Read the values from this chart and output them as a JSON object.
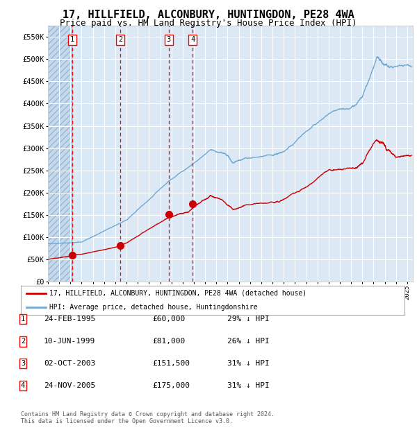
{
  "title": "17, HILLFIELD, ALCONBURY, HUNTINGDON, PE28 4WA",
  "subtitle": "Price paid vs. HM Land Registry's House Price Index (HPI)",
  "title_fontsize": 11,
  "subtitle_fontsize": 9,
  "ylim": [
    0,
    575000
  ],
  "yticks": [
    0,
    50000,
    100000,
    150000,
    200000,
    250000,
    300000,
    350000,
    400000,
    450000,
    500000,
    550000
  ],
  "ytick_labels": [
    "£0",
    "£50K",
    "£100K",
    "£150K",
    "£200K",
    "£250K",
    "£300K",
    "£350K",
    "£400K",
    "£450K",
    "£500K",
    "£550K"
  ],
  "hpi_color": "#6fa8d0",
  "price_color": "#cc0000",
  "background_color": "#ffffff",
  "plot_bg_color": "#dce9f5",
  "grid_color": "#ffffff",
  "sales": [
    {
      "label": "1",
      "date_num": 1995.15,
      "price": 60000
    },
    {
      "label": "2",
      "date_num": 1999.44,
      "price": 81000
    },
    {
      "label": "3",
      "date_num": 2003.75,
      "price": 151500
    },
    {
      "label": "4",
      "date_num": 2005.9,
      "price": 175000
    }
  ],
  "legend_line1": "17, HILLFIELD, ALCONBURY, HUNTINGDON, PE28 4WA (detached house)",
  "legend_line2": "HPI: Average price, detached house, Huntingdonshire",
  "table_rows": [
    [
      "1",
      "24-FEB-1995",
      "£60,000",
      "29% ↓ HPI"
    ],
    [
      "2",
      "10-JUN-1999",
      "£81,000",
      "26% ↓ HPI"
    ],
    [
      "3",
      "02-OCT-2003",
      "£151,500",
      "31% ↓ HPI"
    ],
    [
      "4",
      "24-NOV-2005",
      "£175,000",
      "31% ↓ HPI"
    ]
  ],
  "footnote": "Contains HM Land Registry data © Crown copyright and database right 2024.\nThis data is licensed under the Open Government Licence v3.0.",
  "xmin": 1993.0,
  "xmax": 2025.5
}
